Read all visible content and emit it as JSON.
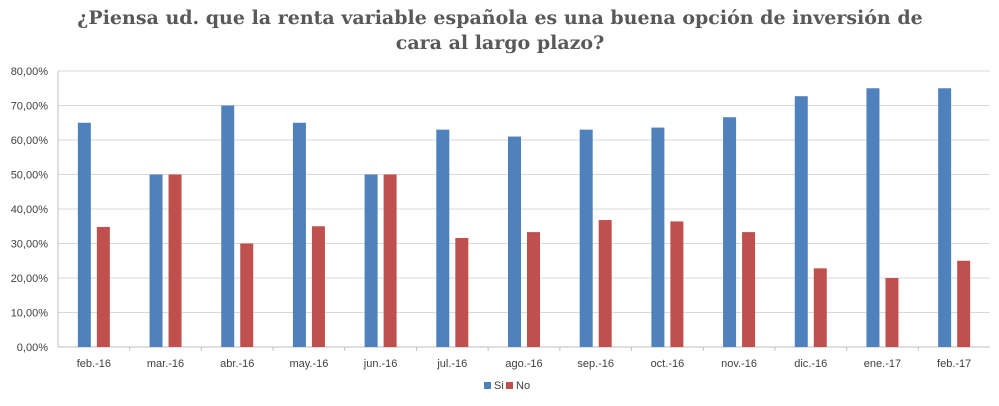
{
  "chart_data": {
    "type": "bar",
    "title_lines": [
      "¿Piensa ud. que la renta variable española es una buena opción de inversión de",
      "cara al largo plazo?"
    ],
    "categories": [
      "feb.-16",
      "mar.-16",
      "abr.-16",
      "may.-16",
      "jun.-16",
      "jul.-16",
      "ago.-16",
      "sep.-16",
      "oct.-16",
      "nov.-16",
      "dic.-16",
      "ene.-17",
      "feb.-17"
    ],
    "series": [
      {
        "name": "Si",
        "color": "#4f81bd",
        "values": [
          65.0,
          50.0,
          70.0,
          65.0,
          50.0,
          63.0,
          61.0,
          63.0,
          63.6,
          66.6,
          72.7,
          75.0,
          75.0
        ]
      },
      {
        "name": "No",
        "color": "#c0504d",
        "values": [
          34.8,
          50.0,
          30.0,
          35.0,
          50.0,
          31.6,
          33.3,
          36.8,
          36.4,
          33.3,
          22.8,
          20.0,
          25.0
        ]
      }
    ],
    "yticks": [
      "0,00%",
      "10,00%",
      "20,00%",
      "30,00%",
      "40,00%",
      "50,00%",
      "60,00%",
      "70,00%",
      "80,00%"
    ],
    "ylim": [
      0,
      80
    ],
    "xlabel": "",
    "ylabel": "",
    "legend_position": "bottom",
    "grid": true,
    "gridline_color": "#d9d9d9",
    "axis_color": "#bfbfbf"
  }
}
